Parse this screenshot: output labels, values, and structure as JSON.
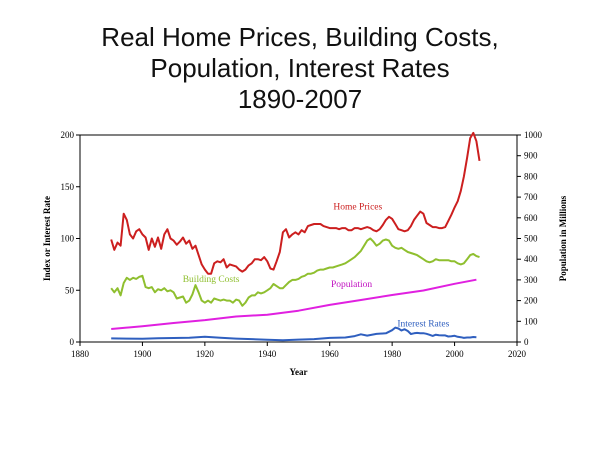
{
  "title": {
    "line1": "Real Home Prices, Building Costs,",
    "line2": "Population, Interest Rates",
    "line3": "1890-2007"
  },
  "chart_data": {
    "type": "line",
    "xlabel": "Year",
    "ylabel": "Index or Interest Rate",
    "y2label": "Population in Millions",
    "xlim": [
      1880,
      2020
    ],
    "ylim": [
      0,
      200
    ],
    "y2lim": [
      0,
      1000
    ],
    "xticks": [
      1880,
      1900,
      1920,
      1940,
      1960,
      1980,
      2000,
      2020
    ],
    "yticks": [
      0,
      50,
      100,
      150,
      200
    ],
    "y2ticks": [
      0,
      100,
      200,
      300,
      400,
      500,
      600,
      700,
      800,
      900,
      1000
    ],
    "grid": false,
    "series": [
      {
        "name": "Home Prices",
        "color": "#cc1f1f",
        "axis": "left",
        "points": [
          [
            1890,
            99
          ],
          [
            1891,
            89
          ],
          [
            1892,
            96
          ],
          [
            1893,
            93
          ],
          [
            1894,
            124
          ],
          [
            1895,
            118
          ],
          [
            1896,
            104
          ],
          [
            1897,
            100
          ],
          [
            1898,
            107
          ],
          [
            1899,
            109
          ],
          [
            1900,
            104
          ],
          [
            1901,
            101
          ],
          [
            1902,
            89
          ],
          [
            1903,
            100
          ],
          [
            1904,
            92
          ],
          [
            1905,
            101
          ],
          [
            1906,
            90
          ],
          [
            1907,
            104
          ],
          [
            1908,
            109
          ],
          [
            1909,
            100
          ],
          [
            1910,
            98
          ],
          [
            1911,
            94
          ],
          [
            1912,
            97
          ],
          [
            1913,
            101
          ],
          [
            1914,
            95
          ],
          [
            1915,
            98
          ],
          [
            1916,
            90
          ],
          [
            1917,
            93
          ],
          [
            1918,
            84
          ],
          [
            1919,
            75
          ],
          [
            1920,
            70
          ],
          [
            1921,
            66
          ],
          [
            1922,
            66
          ],
          [
            1923,
            76
          ],
          [
            1924,
            78
          ],
          [
            1925,
            77
          ],
          [
            1926,
            80
          ],
          [
            1927,
            72
          ],
          [
            1928,
            75
          ],
          [
            1929,
            74
          ],
          [
            1930,
            73
          ],
          [
            1931,
            70
          ],
          [
            1932,
            68
          ],
          [
            1933,
            70
          ],
          [
            1934,
            74
          ],
          [
            1935,
            76
          ],
          [
            1936,
            80
          ],
          [
            1937,
            80
          ],
          [
            1938,
            79
          ],
          [
            1939,
            82
          ],
          [
            1940,
            78
          ],
          [
            1941,
            71
          ],
          [
            1942,
            70
          ],
          [
            1943,
            78
          ],
          [
            1944,
            87
          ],
          [
            1945,
            106
          ],
          [
            1946,
            109
          ],
          [
            1947,
            101
          ],
          [
            1948,
            104
          ],
          [
            1949,
            106
          ],
          [
            1950,
            104
          ],
          [
            1951,
            108
          ],
          [
            1952,
            106
          ],
          [
            1953,
            112
          ],
          [
            1954,
            113
          ],
          [
            1955,
            114
          ],
          [
            1956,
            114
          ],
          [
            1957,
            114
          ],
          [
            1958,
            112
          ],
          [
            1959,
            111
          ],
          [
            1960,
            110
          ],
          [
            1961,
            110
          ],
          [
            1962,
            110
          ],
          [
            1963,
            109
          ],
          [
            1964,
            110
          ],
          [
            1965,
            110
          ],
          [
            1966,
            108
          ],
          [
            1967,
            108
          ],
          [
            1968,
            110
          ],
          [
            1969,
            110
          ],
          [
            1970,
            109
          ],
          [
            1971,
            110
          ],
          [
            1972,
            111
          ],
          [
            1973,
            110
          ],
          [
            1974,
            108
          ],
          [
            1975,
            107
          ],
          [
            1976,
            109
          ],
          [
            1977,
            113
          ],
          [
            1978,
            118
          ],
          [
            1979,
            121
          ],
          [
            1980,
            119
          ],
          [
            1981,
            114
          ],
          [
            1982,
            109
          ],
          [
            1983,
            108
          ],
          [
            1984,
            107
          ],
          [
            1985,
            108
          ],
          [
            1986,
            112
          ],
          [
            1987,
            118
          ],
          [
            1988,
            122
          ],
          [
            1989,
            126
          ],
          [
            1990,
            124
          ],
          [
            1991,
            115
          ],
          [
            1992,
            113
          ],
          [
            1993,
            111
          ],
          [
            1994,
            111
          ],
          [
            1995,
            110
          ],
          [
            1996,
            110
          ],
          [
            1997,
            111
          ],
          [
            1998,
            117
          ],
          [
            1999,
            123
          ],
          [
            2000,
            130
          ],
          [
            2001,
            136
          ],
          [
            2002,
            146
          ],
          [
            2003,
            160
          ],
          [
            2004,
            178
          ],
          [
            2005,
            197
          ],
          [
            2006,
            202
          ],
          [
            2007,
            194
          ],
          [
            2008,
            175
          ]
        ]
      },
      {
        "name": "Building Costs",
        "color": "#8fbf2f",
        "axis": "left",
        "points": [
          [
            1890,
            52
          ],
          [
            1891,
            48
          ],
          [
            1892,
            52
          ],
          [
            1893,
            45
          ],
          [
            1894,
            57
          ],
          [
            1895,
            62
          ],
          [
            1896,
            60
          ],
          [
            1897,
            62
          ],
          [
            1898,
            61
          ],
          [
            1899,
            63
          ],
          [
            1900,
            64
          ],
          [
            1901,
            53
          ],
          [
            1902,
            52
          ],
          [
            1903,
            53
          ],
          [
            1904,
            48
          ],
          [
            1905,
            51
          ],
          [
            1906,
            50
          ],
          [
            1907,
            52
          ],
          [
            1908,
            49
          ],
          [
            1909,
            50
          ],
          [
            1910,
            48
          ],
          [
            1911,
            42
          ],
          [
            1912,
            43
          ],
          [
            1913,
            44
          ],
          [
            1914,
            38
          ],
          [
            1915,
            40
          ],
          [
            1916,
            46
          ],
          [
            1917,
            55
          ],
          [
            1918,
            48
          ],
          [
            1919,
            40
          ],
          [
            1920,
            38
          ],
          [
            1921,
            40
          ],
          [
            1922,
            38
          ],
          [
            1923,
            42
          ],
          [
            1924,
            41
          ],
          [
            1925,
            40
          ],
          [
            1926,
            41
          ],
          [
            1927,
            40
          ],
          [
            1928,
            40
          ],
          [
            1929,
            38
          ],
          [
            1930,
            41
          ],
          [
            1931,
            40
          ],
          [
            1932,
            35
          ],
          [
            1933,
            38
          ],
          [
            1934,
            43
          ],
          [
            1935,
            45
          ],
          [
            1936,
            45
          ],
          [
            1937,
            48
          ],
          [
            1938,
            47
          ],
          [
            1939,
            48
          ],
          [
            1940,
            50
          ],
          [
            1941,
            52
          ],
          [
            1942,
            56
          ],
          [
            1943,
            54
          ],
          [
            1944,
            52
          ],
          [
            1945,
            52
          ],
          [
            1946,
            55
          ],
          [
            1947,
            58
          ],
          [
            1948,
            60
          ],
          [
            1949,
            60
          ],
          [
            1950,
            61
          ],
          [
            1951,
            63
          ],
          [
            1952,
            64
          ],
          [
            1953,
            66
          ],
          [
            1954,
            66
          ],
          [
            1955,
            67
          ],
          [
            1956,
            69
          ],
          [
            1957,
            70
          ],
          [
            1958,
            70
          ],
          [
            1959,
            71
          ],
          [
            1960,
            72
          ],
          [
            1961,
            72
          ],
          [
            1962,
            73
          ],
          [
            1963,
            74
          ],
          [
            1964,
            75
          ],
          [
            1965,
            76
          ],
          [
            1966,
            78
          ],
          [
            1967,
            80
          ],
          [
            1968,
            82
          ],
          [
            1969,
            85
          ],
          [
            1970,
            88
          ],
          [
            1971,
            93
          ],
          [
            1972,
            98
          ],
          [
            1973,
            100
          ],
          [
            1974,
            97
          ],
          [
            1975,
            93
          ],
          [
            1976,
            95
          ],
          [
            1977,
            98
          ],
          [
            1978,
            99
          ],
          [
            1979,
            98
          ],
          [
            1980,
            93
          ],
          [
            1981,
            91
          ],
          [
            1982,
            90
          ],
          [
            1983,
            91
          ],
          [
            1984,
            89
          ],
          [
            1985,
            87
          ],
          [
            1986,
            86
          ],
          [
            1987,
            85
          ],
          [
            1988,
            84
          ],
          [
            1989,
            82
          ],
          [
            1990,
            80
          ],
          [
            1991,
            78
          ],
          [
            1992,
            77
          ],
          [
            1993,
            78
          ],
          [
            1994,
            80
          ],
          [
            1995,
            79
          ],
          [
            1996,
            79
          ],
          [
            1997,
            79
          ],
          [
            1998,
            79
          ],
          [
            1999,
            78
          ],
          [
            2000,
            78
          ],
          [
            2001,
            76
          ],
          [
            2002,
            75
          ],
          [
            2003,
            76
          ],
          [
            2004,
            80
          ],
          [
            2005,
            84
          ],
          [
            2006,
            85
          ],
          [
            2007,
            83
          ],
          [
            2008,
            82
          ]
        ]
      },
      {
        "name": "Population",
        "color": "#e020e0",
        "axis": "right",
        "points": [
          [
            1890,
            63
          ],
          [
            1900,
            76
          ],
          [
            1910,
            92
          ],
          [
            1920,
            106
          ],
          [
            1930,
            123
          ],
          [
            1940,
            132
          ],
          [
            1950,
            151
          ],
          [
            1960,
            179
          ],
          [
            1970,
            203
          ],
          [
            1980,
            227
          ],
          [
            1990,
            249
          ],
          [
            2000,
            281
          ],
          [
            2007,
            301
          ]
        ]
      },
      {
        "name": "Interest Rates",
        "color": "#2f5fbf",
        "axis": "left",
        "points": [
          [
            1890,
            3.5
          ],
          [
            1895,
            3.3
          ],
          [
            1900,
            3.2
          ],
          [
            1905,
            3.6
          ],
          [
            1910,
            3.9
          ],
          [
            1915,
            4.2
          ],
          [
            1920,
            5.0
          ],
          [
            1925,
            4.1
          ],
          [
            1930,
            3.3
          ],
          [
            1935,
            2.8
          ],
          [
            1940,
            2.2
          ],
          [
            1945,
            1.7
          ],
          [
            1950,
            2.3
          ],
          [
            1955,
            2.8
          ],
          [
            1960,
            4.0
          ],
          [
            1965,
            4.3
          ],
          [
            1968,
            5.7
          ],
          [
            1970,
            7.4
          ],
          [
            1972,
            6.2
          ],
          [
            1975,
            7.8
          ],
          [
            1978,
            8.4
          ],
          [
            1980,
            11.4
          ],
          [
            1981,
            13.9
          ],
          [
            1982,
            13.0
          ],
          [
            1983,
            11.1
          ],
          [
            1984,
            12.4
          ],
          [
            1985,
            10.6
          ],
          [
            1986,
            7.7
          ],
          [
            1987,
            8.4
          ],
          [
            1988,
            8.8
          ],
          [
            1989,
            8.5
          ],
          [
            1990,
            8.5
          ],
          [
            1991,
            7.9
          ],
          [
            1992,
            7.0
          ],
          [
            1993,
            5.9
          ],
          [
            1994,
            7.1
          ],
          [
            1995,
            6.6
          ],
          [
            1996,
            6.4
          ],
          [
            1997,
            6.4
          ],
          [
            1998,
            5.3
          ],
          [
            1999,
            5.6
          ],
          [
            2000,
            6.0
          ],
          [
            2001,
            5.0
          ],
          [
            2002,
            4.6
          ],
          [
            2003,
            4.0
          ],
          [
            2004,
            4.3
          ],
          [
            2005,
            4.3
          ],
          [
            2006,
            4.8
          ],
          [
            2007,
            4.6
          ]
        ]
      }
    ],
    "annotations": [
      {
        "text": "Home Prices",
        "x": 1969,
        "y": 128,
        "color": "#cc1f1f"
      },
      {
        "text": "Building Costs",
        "x": 1922,
        "y": 58,
        "color": "#8fbf2f"
      },
      {
        "text": "Population",
        "x": 1967,
        "y": 53,
        "color": "#c010c0"
      },
      {
        "text": "Interest Rates",
        "x": 1990,
        "y": 15,
        "color": "#2f5fbf"
      }
    ]
  }
}
